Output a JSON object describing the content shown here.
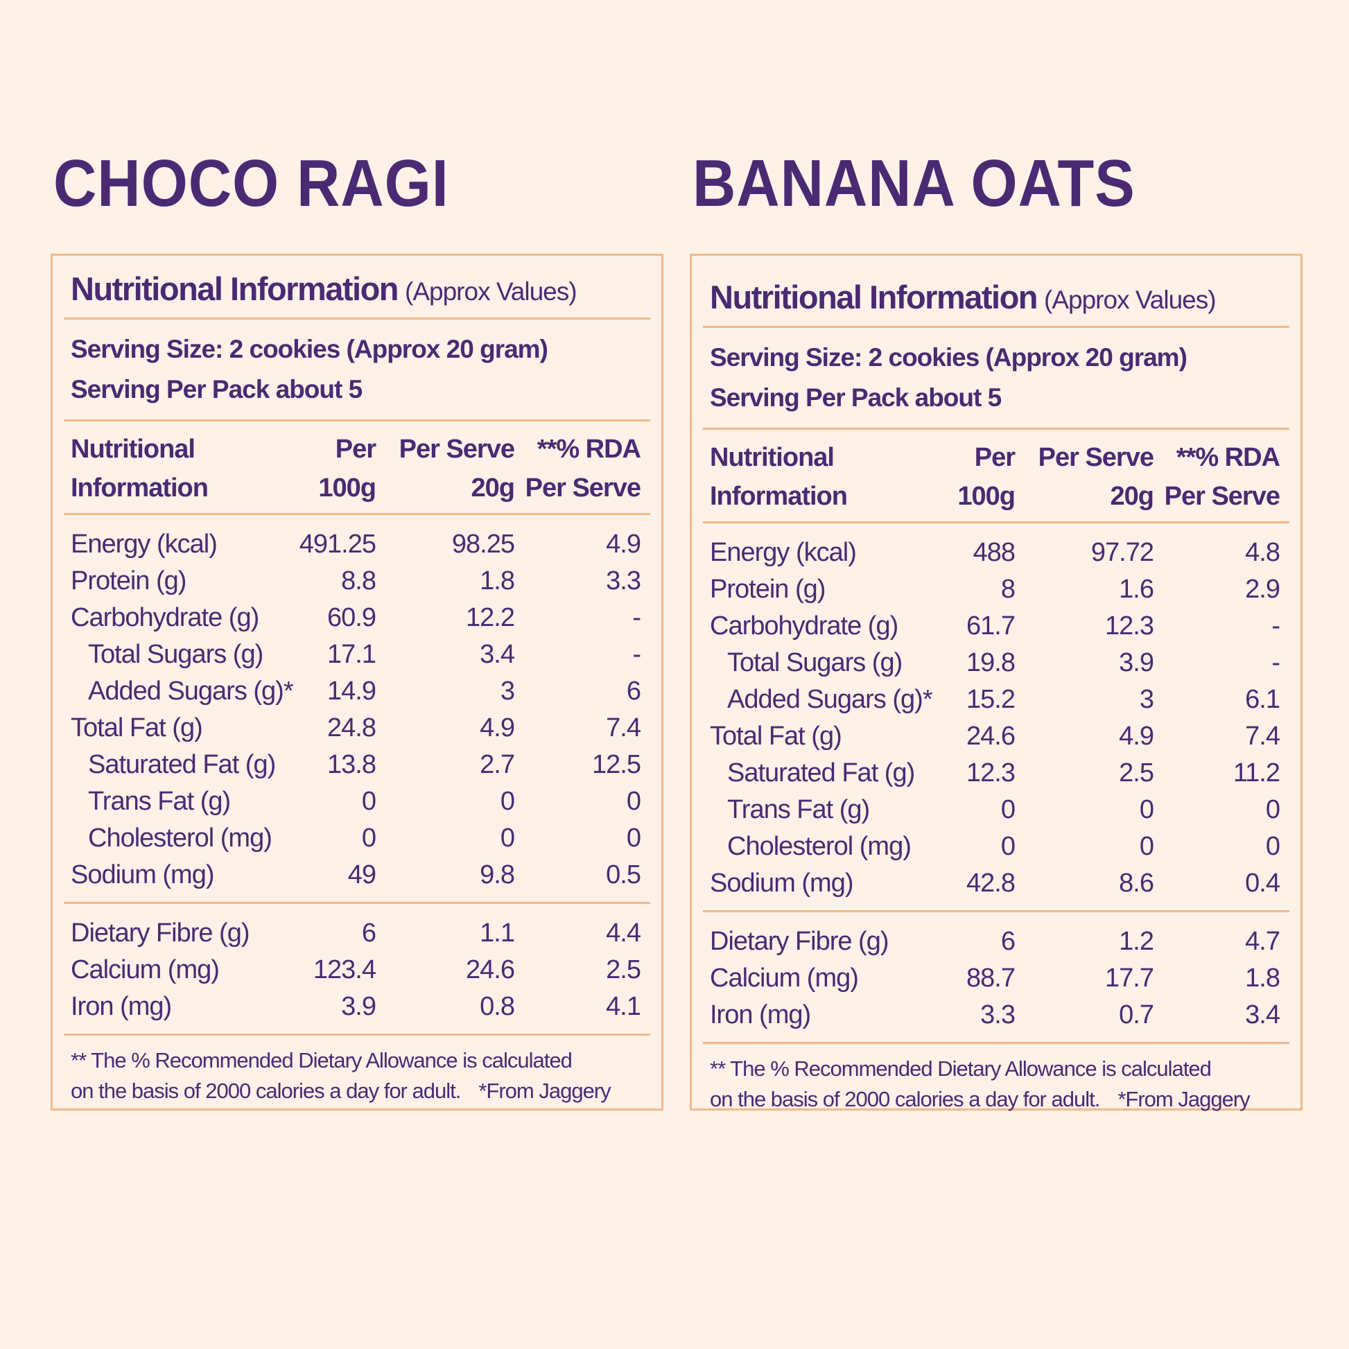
{
  "panels": [
    {
      "title": "CHOCO RAGI",
      "heading": "Nutritional Information",
      "heading_note": "(Approx Values)",
      "serving_size": "Serving Size: 2 cookies (Approx 20 gram)",
      "serving_per_pack": "Serving Per Pack about 5",
      "header": [
        [
          "Nutritional",
          "Per",
          "Per Serve",
          "**% RDA"
        ],
        [
          "Information",
          "100g",
          "20g",
          "Per Serve"
        ]
      ],
      "groups": [
        [
          [
            "Energy (kcal)",
            "491.25",
            "98.25",
            "4.9"
          ],
          [
            "Protein (g)",
            "8.8",
            "1.8",
            "3.3"
          ],
          [
            "Carbohydrate (g)",
            "60.9",
            "12.2",
            "-"
          ],
          [
            "Total Sugars (g)",
            "17.1",
            "3.4",
            "-"
          ],
          [
            "Added  Sugars (g)*",
            "14.9",
            "3",
            "6"
          ],
          [
            "Total Fat (g)",
            "24.8",
            "4.9",
            "7.4"
          ],
          [
            "Saturated Fat (g)",
            "13.8",
            "2.7",
            "12.5"
          ],
          [
            "Trans Fat (g)",
            "0",
            "0",
            "0"
          ],
          [
            "Cholesterol (mg)",
            "0",
            "0",
            "0"
          ],
          [
            "Sodium (mg)",
            "49",
            "9.8",
            "0.5"
          ]
        ],
        [
          [
            "Dietary Fibre (g)",
            "6",
            "1.1",
            "4.4"
          ],
          [
            "Calcium (mg)",
            "123.4",
            "24.6",
            "2.5"
          ],
          [
            "Iron (mg)",
            "3.9",
            "0.8",
            "4.1"
          ]
        ]
      ],
      "footnote": [
        "** The % Recommended Dietary Allowance is calculated",
        "on the basis of 2000 calories a day for adult."
      ],
      "footnote_note": "*From Jaggery"
    },
    {
      "title": "BANANA OATS",
      "heading": "Nutritional Information",
      "heading_note": "(Approx Values)",
      "serving_size": "Serving Size: 2 cookies (Approx 20 gram)",
      "serving_per_pack": "Serving Per Pack about 5",
      "header": [
        [
          "Nutritional",
          "Per",
          "Per Serve",
          "**% RDA"
        ],
        [
          "Information",
          "100g",
          "20g",
          "Per Serve"
        ]
      ],
      "groups": [
        [
          [
            "Energy (kcal)",
            "488",
            "97.72",
            "4.8"
          ],
          [
            "Protein (g)",
            "8",
            "1.6",
            "2.9"
          ],
          [
            "Carbohydrate (g)",
            "61.7",
            "12.3",
            "-"
          ],
          [
            "Total Sugars (g)",
            "19.8",
            "3.9",
            "-"
          ],
          [
            "Added  Sugars (g)*",
            "15.2",
            "3",
            "6.1"
          ],
          [
            "Total Fat (g)",
            "24.6",
            "4.9",
            "7.4"
          ],
          [
            "Saturated Fat (g)",
            "12.3",
            "2.5",
            "11.2"
          ],
          [
            "Trans Fat (g)",
            "0",
            "0",
            "0"
          ],
          [
            "Cholesterol (mg)",
            "0",
            "0",
            "0"
          ],
          [
            "Sodium (mg)",
            "42.8",
            "8.6",
            "0.4"
          ]
        ],
        [
          [
            "Dietary Fibre (g)",
            "6",
            "1.2",
            "4.7"
          ],
          [
            "Calcium (mg)",
            "88.7",
            "17.7",
            "1.8"
          ],
          [
            "Iron (mg)",
            "3.3",
            "0.7",
            "3.4"
          ]
        ]
      ],
      "footnote": [
        "** The % Recommended Dietary Allowance is calculated",
        "on the basis of 2000 calories a day for adult."
      ],
      "footnote_note": "*From Jaggery"
    }
  ]
}
